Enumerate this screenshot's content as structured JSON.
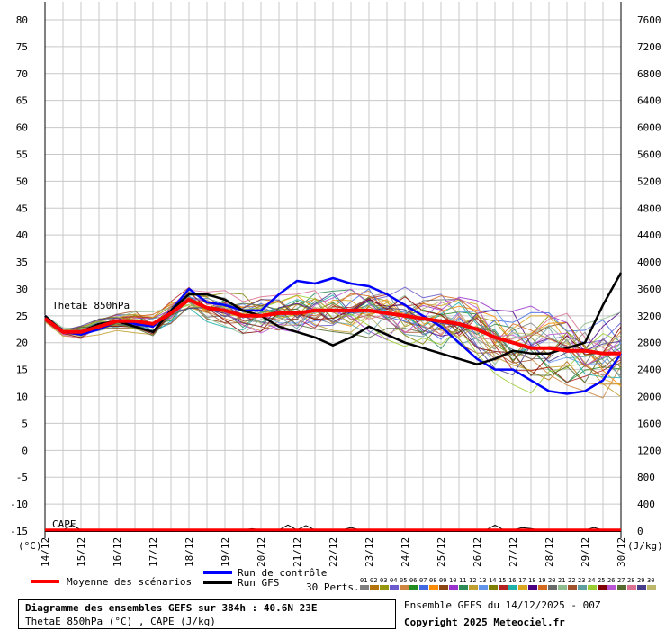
{
  "chart_data": {
    "type": "line",
    "left_axis_unit": "(°C)",
    "right_axis_unit": "(J/kg)",
    "ylim_left": [
      -15,
      80
    ],
    "ylim_right": [
      0,
      7600
    ],
    "left_ticks": [
      80,
      75,
      70,
      65,
      60,
      55,
      50,
      45,
      40,
      35,
      30,
      25,
      20,
      15,
      10,
      5,
      0,
      -5,
      -10,
      -15
    ],
    "right_ticks": [
      7600,
      7200,
      6800,
      6400,
      6000,
      5600,
      5200,
      4800,
      4400,
      4000,
      3600,
      3200,
      2800,
      2400,
      2000,
      1600,
      1200,
      800,
      400,
      0
    ],
    "x_labels": [
      "14/12",
      "15/12",
      "16/12",
      "17/12",
      "18/12",
      "19/12",
      "20/12",
      "21/12",
      "22/12",
      "23/12",
      "24/12",
      "25/12",
      "26/12",
      "27/12",
      "28/12",
      "29/12",
      "30/12"
    ],
    "annotations": {
      "thetae": "ThetaE 850hPa",
      "cape": "CAPE"
    },
    "x": [
      0,
      0.5,
      1,
      1.5,
      2,
      2.5,
      3,
      3.5,
      4,
      4.5,
      5,
      5.5,
      6,
      6.5,
      7,
      7.5,
      8,
      8.5,
      9,
      9.5,
      10,
      10.5,
      11,
      11.5,
      12,
      12.5,
      13,
      13.5,
      14,
      14.5,
      15,
      15.5,
      16
    ],
    "series": [
      {
        "name": "Moyenne des scénarios",
        "color": "#ff0000",
        "width": 4,
        "values": [
          24.5,
          22,
          22,
          23,
          24,
          24,
          23.5,
          25.5,
          28,
          26.5,
          26,
          25,
          25,
          25.5,
          25.5,
          26,
          26,
          26,
          26,
          25.5,
          25,
          24.5,
          24,
          23.5,
          22.5,
          21,
          20,
          19,
          19,
          18.5,
          18.5,
          18,
          18
        ]
      },
      {
        "name": "Run de contrôle",
        "color": "#0000ff",
        "width": 2.5,
        "values": [
          25,
          22,
          21.5,
          22.5,
          24,
          23.5,
          23,
          26,
          30,
          27.5,
          27,
          26,
          26,
          29,
          31.5,
          31,
          32,
          31,
          30.5,
          29,
          27,
          25,
          23,
          20,
          17,
          15,
          15,
          13,
          11,
          10.5,
          11,
          13,
          18
        ]
      },
      {
        "name": "Run GFS",
        "color": "#000000",
        "width": 2.5,
        "values": [
          25,
          22,
          22,
          23.5,
          24,
          23,
          22,
          26,
          29,
          29,
          28,
          26,
          25,
          23,
          22,
          21,
          19.5,
          21,
          23,
          21.5,
          20,
          19,
          18,
          17,
          16,
          17,
          18.5,
          18,
          18,
          19,
          20,
          27,
          33
        ]
      }
    ],
    "perturbations_count": 30,
    "perturbation_colors": [
      "#7f7f7f",
      "#b5730b",
      "#96960f",
      "#6a5acd",
      "#cd853f",
      "#228b22",
      "#4169e1",
      "#ff8c00",
      "#8b4513",
      "#9932cc",
      "#2e8b57",
      "#c0a030",
      "#6495ed",
      "#808000",
      "#b22222",
      "#20b2aa",
      "#daa520",
      "#4b0082",
      "#d2691e",
      "#696969",
      "#8fbc8f",
      "#a0522d",
      "#5f9ea0",
      "#9acd32",
      "#800000",
      "#ba55d3",
      "#556b2f",
      "#db7093",
      "#483d8b",
      "#bdb76b"
    ]
  },
  "legend": {
    "mean_label": "Moyenne des scénarios",
    "control_label": "Run de contrôle",
    "gfs_label": "Run GFS",
    "perts_label": "30 Perts.",
    "pert_numbers": [
      "01",
      "02",
      "03",
      "04",
      "05",
      "06",
      "07",
      "08",
      "09",
      "10",
      "11",
      "12",
      "13",
      "14",
      "15",
      "16",
      "17",
      "18",
      "19",
      "20",
      "21",
      "22",
      "23",
      "24",
      "25",
      "26",
      "27",
      "28",
      "29",
      "30"
    ]
  },
  "info": {
    "title": "Diagramme des ensembles GEFS sur 384h : 40.6N 23E",
    "subtitle": "ThetaE 850hPa (°C) , CAPE (J/kg)",
    "ensemble": "Ensemble GEFS du 14/12/2025 - 00Z",
    "copyright": "Copyright 2025 Meteociel.fr"
  }
}
